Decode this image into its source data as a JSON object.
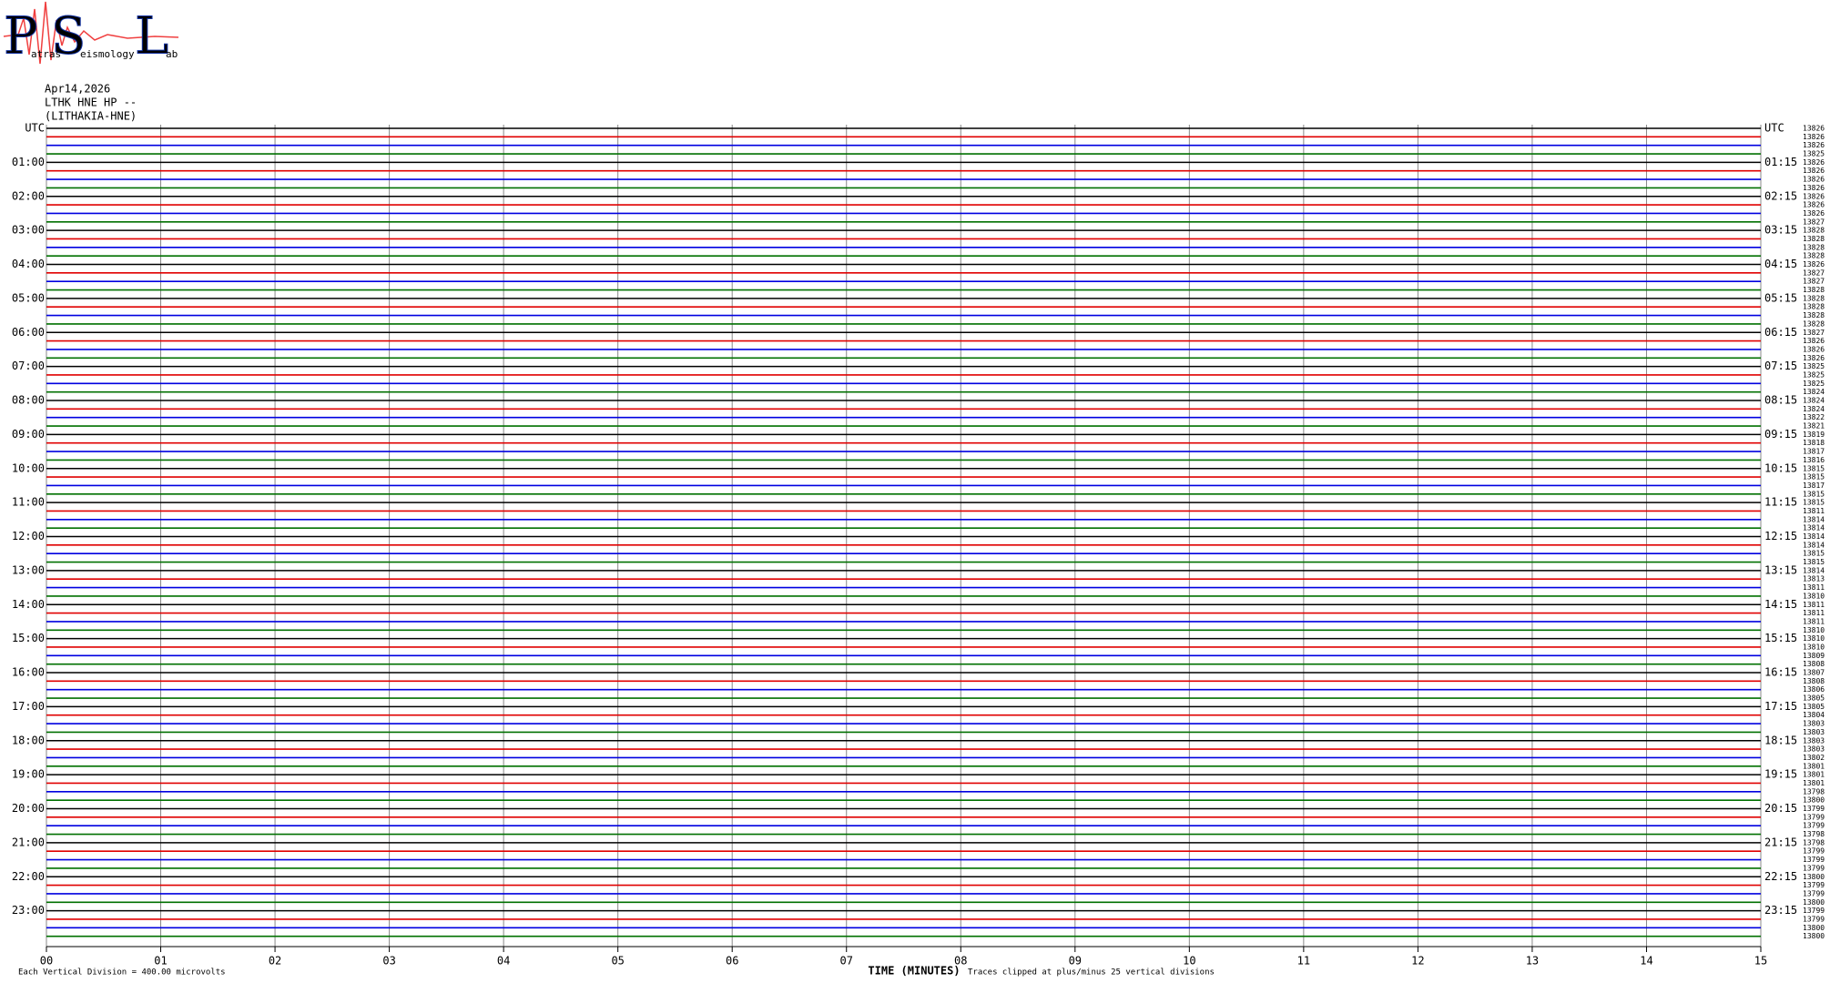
{
  "logo": {
    "letters": [
      "P",
      "S",
      "L"
    ],
    "words": [
      "atras",
      "eismology",
      "ab"
    ]
  },
  "header": {
    "date": "Apr14,2026",
    "channel": "LTHK HNE HP --",
    "station": "(LITHAKIA-HNE)"
  },
  "axis": {
    "title": "TIME (MINUTES)",
    "note": "Traces clipped at plus/minus 25 vertical divisions",
    "scale": "Each Vertical Division =  400.00 microvolts",
    "xlim": [
      0,
      15
    ],
    "xticks": [
      {
        "value": 0,
        "label": "00"
      },
      {
        "value": 1,
        "label": "01"
      },
      {
        "value": 2,
        "label": "02"
      },
      {
        "value": 3,
        "label": "03"
      },
      {
        "value": 4,
        "label": "04"
      },
      {
        "value": 5,
        "label": "05"
      },
      {
        "value": 6,
        "label": "06"
      },
      {
        "value": 7,
        "label": "07"
      },
      {
        "value": 8,
        "label": "08"
      },
      {
        "value": 9,
        "label": "09"
      },
      10,
      11,
      12,
      13,
      14,
      15
    ]
  },
  "rows": {
    "trace_colors": [
      "#000000",
      "#e00000",
      "#0000e0",
      "#007000"
    ],
    "left_labels": [
      "UTC",
      "01:00",
      "02:00",
      "03:00",
      "04:00",
      "05:00",
      "06:00",
      "07:00",
      "08:00",
      "09:00",
      "10:00",
      "11:00",
      "12:00",
      "13:00",
      "14:00",
      "15:00",
      "16:00",
      "17:00",
      "18:00",
      "19:00",
      "20:00",
      "21:00",
      "22:00",
      "23:00"
    ],
    "right_labels": [
      "UTC",
      "01:15",
      "02:15",
      "03:15",
      "04:15",
      "05:15",
      "06:15",
      "07:15",
      "08:15",
      "09:15",
      "10:15",
      "11:15",
      "12:15",
      "13:15",
      "14:15",
      "15:15",
      "16:15",
      "17:15",
      "18:15",
      "19:15",
      "20:15",
      "21:15",
      "22:15",
      "23:15"
    ],
    "counts": [
      13826,
      13826,
      13826,
      13825,
      13826,
      13826,
      13826,
      13826,
      13826,
      13826,
      13826,
      13827,
      13828,
      13828,
      13828,
      13828,
      13826,
      13827,
      13827,
      13828,
      13828,
      13828,
      13828,
      13828,
      13827,
      13826,
      13826,
      13826,
      13825,
      13825,
      13825,
      13824,
      13824,
      13824,
      13822,
      13821,
      13819,
      13818,
      13817,
      13816,
      13815,
      13815,
      13817,
      13815,
      13815,
      13811,
      13814,
      13814,
      13814,
      13814,
      13815,
      13815,
      13814,
      13813,
      13811,
      13810,
      13811,
      13811,
      13811,
      13810,
      13810,
      13810,
      13809,
      13808,
      13807,
      13808,
      13806,
      13805,
      13805,
      13804,
      13803,
      13803,
      13803,
      13803,
      13802,
      13801,
      13801,
      13801,
      13798,
      13800,
      13799,
      13799,
      13799,
      13798,
      13798,
      13799,
      13799,
      13799,
      13800,
      13799,
      13799,
      13800,
      13799,
      13799,
      13800,
      13800
    ]
  }
}
